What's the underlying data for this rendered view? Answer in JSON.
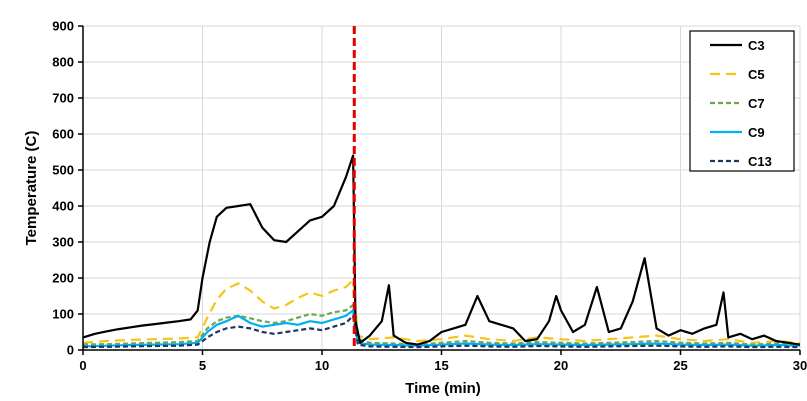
{
  "chart_data": {
    "type": "line",
    "xlabel": "Time (min)",
    "ylabel": "Temperature (C)",
    "xlim": [
      0,
      30
    ],
    "ylim": [
      0,
      900
    ],
    "xticks": [
      "0",
      "5",
      "10",
      "15",
      "20",
      "25",
      "30"
    ],
    "yticks": [
      "0",
      "100",
      "200",
      "300",
      "400",
      "500",
      "600",
      "700",
      "800",
      "900"
    ],
    "grid": true,
    "legend_position": "top-right",
    "vline": {
      "x": 11.35,
      "color": "#e00000",
      "style": "dashed"
    },
    "series": [
      {
        "name": "C3",
        "color": "#000000",
        "dash": "solid",
        "x": [
          0,
          0.5,
          1,
          1.5,
          2,
          2.5,
          3,
          3.5,
          4,
          4.5,
          4.8,
          5,
          5.3,
          5.6,
          6,
          6.5,
          7,
          7.5,
          8,
          8.5,
          9,
          9.5,
          10,
          10.5,
          11,
          11.3,
          11.4,
          11.6,
          12,
          12.5,
          12.8,
          13,
          13.5,
          14,
          14.5,
          15,
          15.5,
          16,
          16.5,
          17,
          17.5,
          18,
          18.5,
          19,
          19.5,
          19.8,
          20,
          20.5,
          21,
          21.5,
          22,
          22.5,
          23,
          23.5,
          24,
          24.5,
          25,
          25.5,
          26,
          26.5,
          26.8,
          27,
          27.5,
          28,
          28.5,
          29,
          29.5,
          30
        ],
        "y": [
          35,
          45,
          52,
          58,
          63,
          68,
          72,
          76,
          80,
          85,
          110,
          200,
          300,
          370,
          395,
          400,
          405,
          340,
          305,
          300,
          330,
          360,
          370,
          400,
          480,
          540,
          80,
          20,
          40,
          80,
          180,
          40,
          20,
          15,
          25,
          50,
          60,
          70,
          150,
          80,
          70,
          60,
          25,
          30,
          80,
          150,
          110,
          50,
          70,
          175,
          50,
          60,
          135,
          255,
          60,
          40,
          55,
          45,
          60,
          70,
          160,
          35,
          45,
          30,
          40,
          25,
          20,
          15
        ]
      },
      {
        "name": "C5",
        "color": "#f5c518",
        "dash": "long",
        "x": [
          0,
          1,
          2,
          3,
          4,
          4.8,
          5.2,
          5.6,
          6,
          6.5,
          7,
          7.5,
          8,
          8.5,
          9,
          9.5,
          10,
          10.5,
          11,
          11.3,
          11.5,
          12,
          13,
          14,
          15,
          16,
          17,
          18,
          19,
          20,
          21,
          22,
          23,
          24,
          25,
          26,
          27,
          28,
          29,
          30
        ],
        "y": [
          20,
          25,
          28,
          30,
          32,
          35,
          90,
          140,
          170,
          185,
          165,
          135,
          115,
          125,
          145,
          160,
          150,
          165,
          175,
          195,
          40,
          30,
          35,
          25,
          30,
          40,
          30,
          25,
          35,
          30,
          25,
          30,
          35,
          40,
          30,
          25,
          30,
          20,
          25,
          20
        ]
      },
      {
        "name": "C7",
        "color": "#6aa84f",
        "dash": "short",
        "x": [
          0,
          1,
          2,
          3,
          4,
          4.8,
          5.2,
          5.6,
          6,
          6.5,
          7,
          7.5,
          8,
          8.5,
          9,
          9.5,
          10,
          10.5,
          11,
          11.3,
          11.5,
          12,
          13,
          14,
          15,
          16,
          17,
          18,
          19,
          20,
          21,
          22,
          23,
          24,
          25,
          26,
          27,
          28,
          29,
          30
        ],
        "y": [
          15,
          16,
          18,
          20,
          22,
          25,
          60,
          80,
          90,
          95,
          88,
          80,
          75,
          80,
          90,
          100,
          95,
          105,
          110,
          125,
          30,
          20,
          18,
          15,
          20,
          25,
          20,
          18,
          22,
          20,
          18,
          20,
          22,
          25,
          20,
          18,
          20,
          15,
          18,
          15
        ]
      },
      {
        "name": "C9",
        "color": "#00b0f0",
        "dash": "solid",
        "x": [
          0,
          1,
          2,
          3,
          4,
          4.8,
          5.2,
          5.6,
          6,
          6.5,
          7,
          7.5,
          8,
          8.5,
          9,
          9.5,
          10,
          10.5,
          11,
          11.3,
          11.5,
          12,
          13,
          14,
          15,
          16,
          17,
          18,
          19,
          20,
          21,
          22,
          23,
          24,
          25,
          26,
          27,
          28,
          29,
          30
        ],
        "y": [
          10,
          12,
          14,
          15,
          16,
          20,
          50,
          70,
          80,
          95,
          75,
          65,
          70,
          75,
          70,
          80,
          75,
          85,
          95,
          110,
          20,
          15,
          14,
          12,
          15,
          18,
          15,
          14,
          16,
          15,
          14,
          15,
          16,
          18,
          15,
          14,
          15,
          12,
          14,
          12
        ]
      },
      {
        "name": "C13",
        "color": "#1f3864",
        "dash": "short",
        "x": [
          0,
          1,
          2,
          3,
          4,
          4.8,
          5.2,
          5.6,
          6,
          6.5,
          7,
          7.5,
          8,
          8.5,
          9,
          9.5,
          10,
          10.5,
          11,
          11.3,
          11.5,
          12,
          13,
          14,
          15,
          16,
          17,
          18,
          19,
          20,
          21,
          22,
          23,
          24,
          25,
          26,
          27,
          28,
          29,
          30
        ],
        "y": [
          8,
          9,
          10,
          11,
          12,
          15,
          35,
          50,
          60,
          65,
          60,
          50,
          45,
          50,
          55,
          60,
          55,
          65,
          75,
          95,
          15,
          10,
          9,
          8,
          10,
          12,
          10,
          9,
          11,
          10,
          9,
          10,
          11,
          12,
          10,
          9,
          10,
          8,
          9,
          8
        ]
      }
    ]
  }
}
